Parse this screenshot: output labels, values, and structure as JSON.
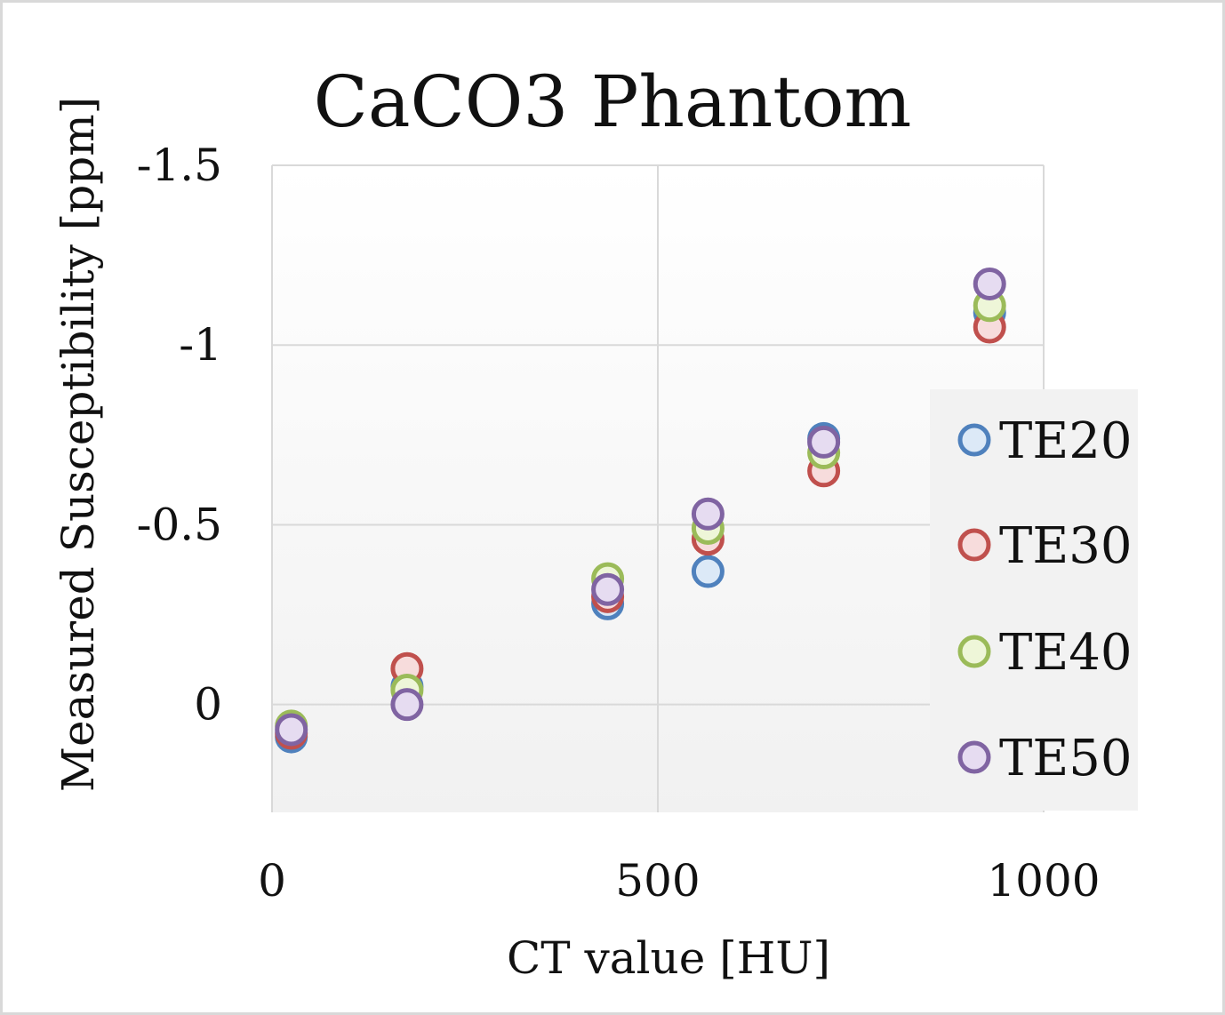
{
  "chart_data": {
    "type": "scatter",
    "title": "CaCO3 Phantom",
    "xlabel": "CT value [HU]",
    "ylabel": "Measured Susceptibility [ppm]",
    "xlim": [
      0,
      1000
    ],
    "ylim": [
      -1.5,
      0.3
    ],
    "y_reversed": true,
    "x_ticks": [
      0,
      500,
      1000
    ],
    "x_tick_labels": [
      "0",
      "500",
      "1000"
    ],
    "y_ticks": [
      -1.5,
      -1,
      -0.5,
      0
    ],
    "y_tick_labels": [
      "-1.5",
      "-1",
      "-0.5",
      "0"
    ],
    "grid": true,
    "legend_position": "right",
    "series": [
      {
        "name": "TE20",
        "color": "#4f81bd",
        "fill": "#dce9f7",
        "x": [
          25,
          175,
          435,
          565,
          715,
          930
        ],
        "y": [
          0.09,
          -0.05,
          -0.28,
          -0.37,
          -0.74,
          -1.09
        ]
      },
      {
        "name": "TE30",
        "color": "#c0504d",
        "fill": "#f7dcdc",
        "x": [
          25,
          175,
          435,
          565,
          715,
          930
        ],
        "y": [
          0.08,
          -0.1,
          -0.3,
          -0.46,
          -0.65,
          -1.05
        ]
      },
      {
        "name": "TE40",
        "color": "#9bbb59",
        "fill": "#eef6d8",
        "x": [
          25,
          175,
          435,
          565,
          715,
          930
        ],
        "y": [
          0.06,
          -0.04,
          -0.35,
          -0.49,
          -0.7,
          -1.11
        ]
      },
      {
        "name": "TE50",
        "color": "#8064a2",
        "fill": "#e6dcf1",
        "x": [
          25,
          175,
          435,
          565,
          715,
          930
        ],
        "y": [
          0.07,
          0.0,
          -0.32,
          -0.53,
          -0.73,
          -1.17
        ]
      }
    ]
  }
}
